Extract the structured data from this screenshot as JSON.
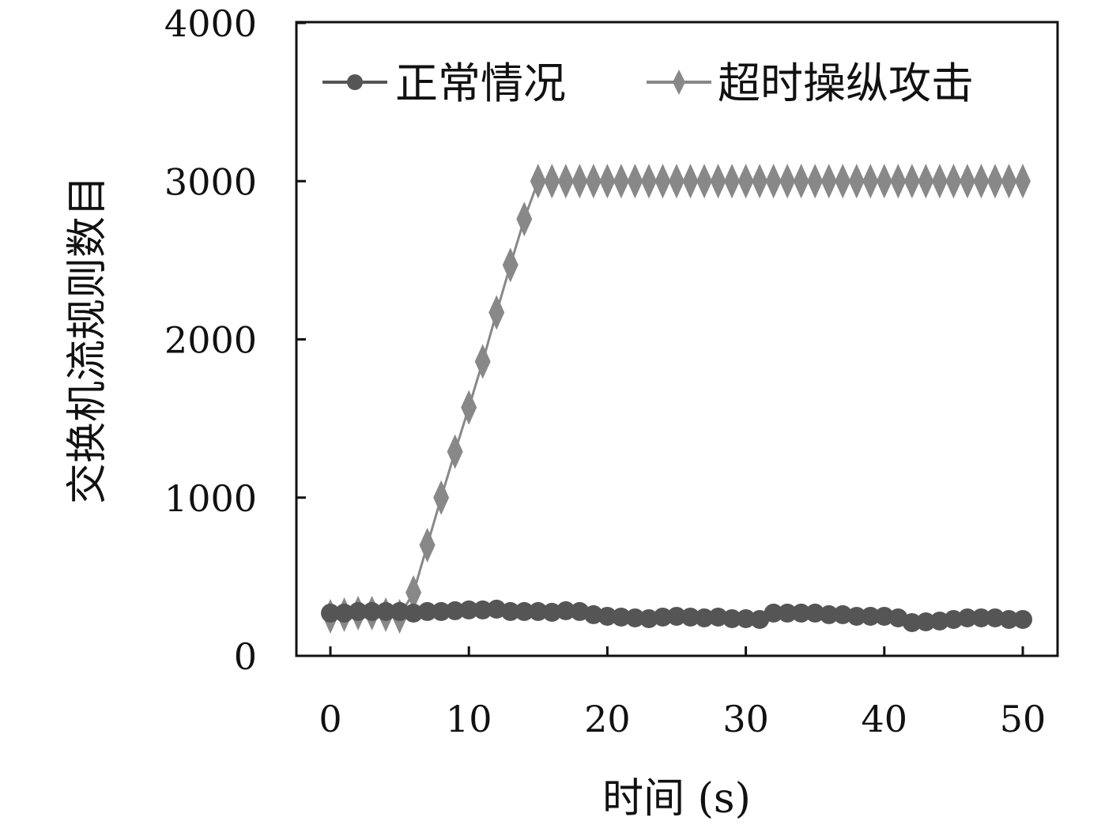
{
  "chart_data": {
    "type": "line",
    "title": "",
    "xlabel": "时间 (s)",
    "ylabel": "交换机流规则数目",
    "xlim": [
      0,
      50
    ],
    "ylim": [
      0,
      4000
    ],
    "x_ticks": [
      "0",
      "10",
      "20",
      "30",
      "40",
      "50"
    ],
    "y_ticks": [
      "0",
      "1000",
      "2000",
      "3000",
      "4000"
    ],
    "grid": false,
    "legend_position": "top",
    "x": [
      0,
      1,
      2,
      3,
      4,
      5,
      6,
      7,
      8,
      9,
      10,
      11,
      12,
      13,
      14,
      15,
      16,
      17,
      18,
      19,
      20,
      21,
      22,
      23,
      24,
      25,
      26,
      27,
      28,
      29,
      30,
      31,
      32,
      33,
      34,
      35,
      36,
      37,
      38,
      39,
      40,
      41,
      42,
      43,
      44,
      45,
      46,
      47,
      48,
      49,
      50
    ],
    "series": [
      {
        "name": "正常情况",
        "color": "#555555",
        "marker": "circle",
        "values": [
          270,
          270,
          280,
          280,
          280,
          280,
          270,
          280,
          280,
          285,
          290,
          290,
          295,
          280,
          280,
          280,
          275,
          285,
          280,
          260,
          250,
          245,
          240,
          235,
          245,
          250,
          245,
          240,
          245,
          235,
          235,
          230,
          270,
          270,
          270,
          270,
          260,
          260,
          250,
          250,
          250,
          240,
          210,
          215,
          220,
          230,
          240,
          240,
          240,
          230,
          230
        ]
      },
      {
        "name": "超时操纵攻击",
        "color": "#888888",
        "marker": "diamond",
        "values": [
          250,
          260,
          270,
          270,
          260,
          250,
          400,
          700,
          1000,
          1290,
          1570,
          1860,
          2170,
          2470,
          2760,
          3000,
          3000,
          3000,
          3000,
          3000,
          3000,
          3000,
          3000,
          3000,
          3000,
          3000,
          3000,
          3000,
          3000,
          3000,
          3000,
          3000,
          3000,
          3000,
          3000,
          3000,
          3000,
          3000,
          3000,
          3000,
          3000,
          3000,
          3000,
          3000,
          3000,
          3000,
          3000,
          3000,
          3000,
          3000,
          3000
        ]
      }
    ]
  }
}
